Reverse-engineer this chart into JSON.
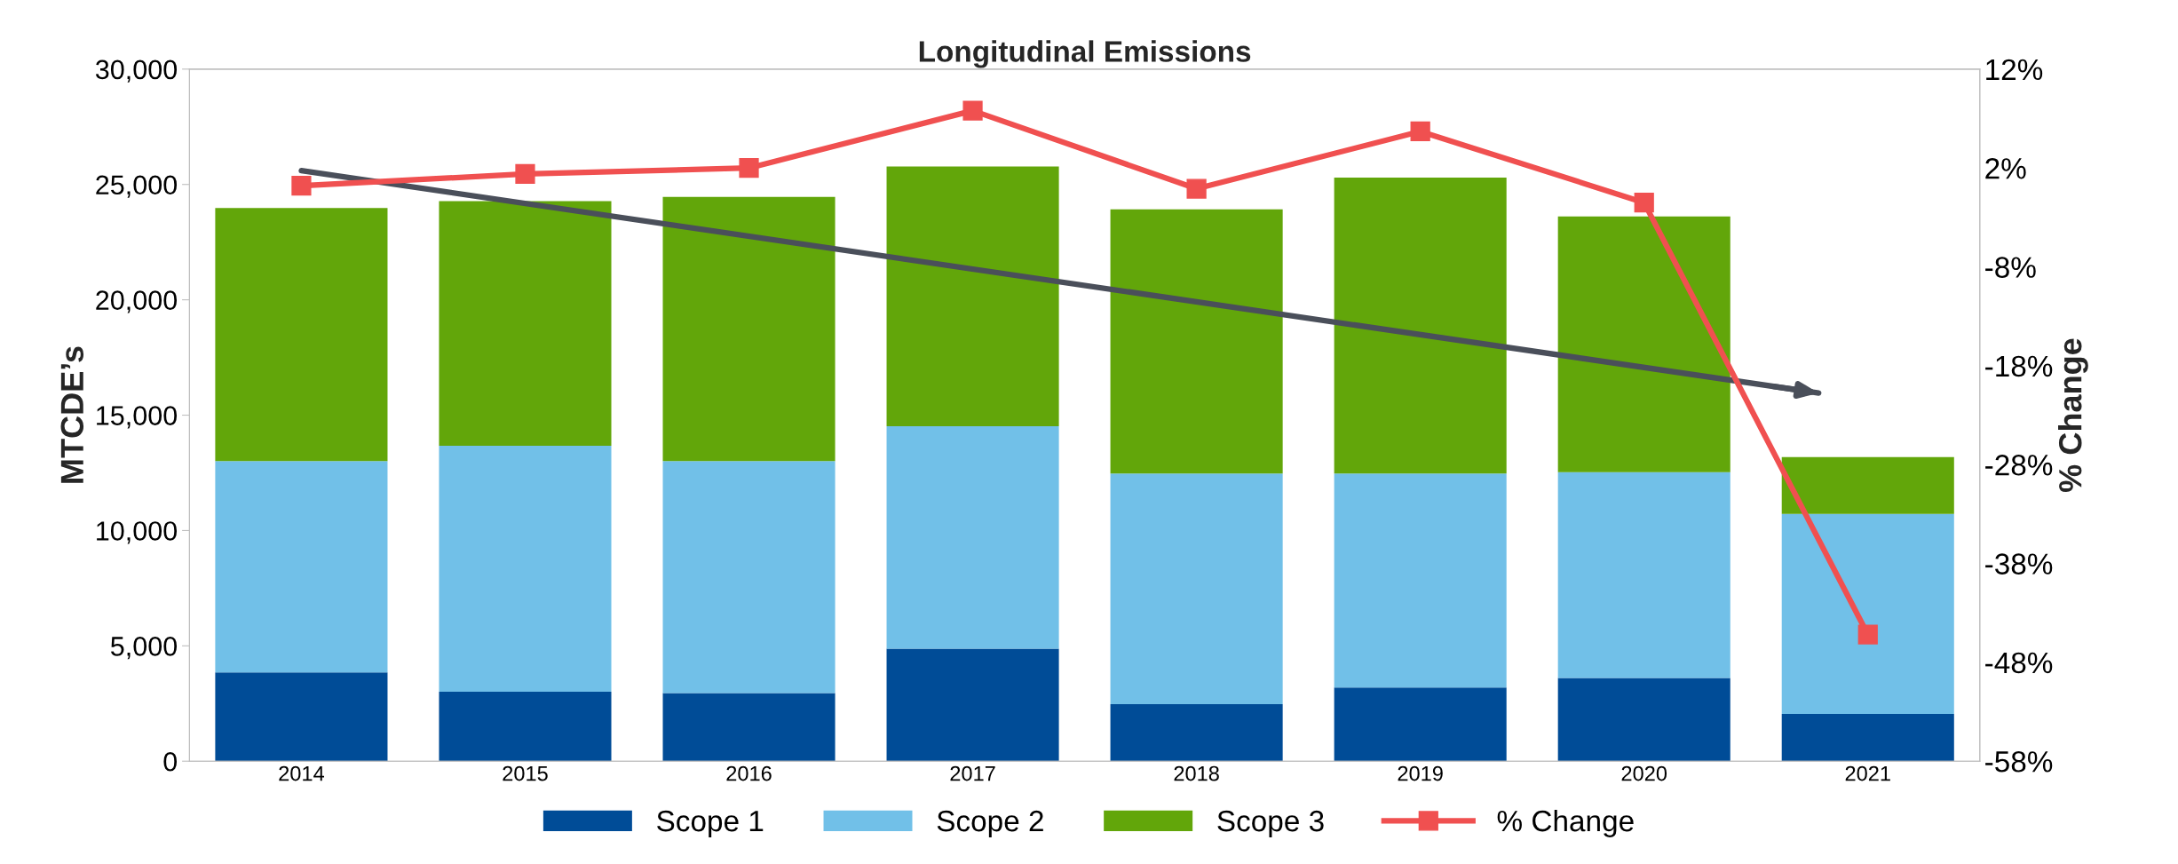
{
  "chart_data": {
    "type": "bar",
    "title": "Longitudinal Emissions",
    "ylabel": "MTCDE’s",
    "y2label": "% Change",
    "stacked": true,
    "x": [
      2014,
      2015,
      2016,
      2017,
      2018,
      2019,
      2020,
      2021
    ],
    "xlim": [
      2013.5,
      2021.5
    ],
    "xticks": [
      2014,
      2015,
      2016,
      2017,
      2018,
      2019,
      2020,
      2021
    ],
    "ylim": [
      0,
      30000
    ],
    "yticks": [
      {
        "value": 0,
        "label": "0"
      },
      {
        "value": 5000,
        "label": "5,000"
      },
      {
        "value": 10000,
        "label": "10,000"
      },
      {
        "value": 15000,
        "label": "15,000"
      },
      {
        "value": 20000,
        "label": "20,000"
      },
      {
        "value": 25000,
        "label": "25,000"
      },
      {
        "value": 30000,
        "label": "30,000"
      }
    ],
    "y2lim": [
      -58,
      12
    ],
    "y2ticks": [
      {
        "value": 12,
        "label": "12%"
      },
      {
        "value": 2,
        "label": "2%"
      },
      {
        "value": -8,
        "label": "-8%"
      },
      {
        "value": -18,
        "label": "-18%"
      },
      {
        "value": -28,
        "label": "-28%"
      },
      {
        "value": -38,
        "label": "-38%"
      },
      {
        "value": -48,
        "label": "-48%"
      },
      {
        "value": -58,
        "label": "-58%"
      }
    ],
    "series": [
      {
        "name": "Scope 1",
        "color": "#004c97",
        "values": [
          3850,
          3010,
          2950,
          4880,
          2470,
          3190,
          3610,
          2050
        ]
      },
      {
        "name": "Scope 2",
        "color": "#71c0e8",
        "values": [
          9160,
          10660,
          10060,
          9640,
          10000,
          9280,
          8920,
          8670
        ]
      },
      {
        "name": "Scope 3",
        "color": "#62a60a",
        "values": [
          10970,
          10610,
          11450,
          11260,
          11450,
          12830,
          11080,
          2460
        ]
      },
      {
        "name": "% Change",
        "type": "line",
        "axis": "y2",
        "color": "#f05050",
        "marker": "square",
        "values": [
          0.2,
          1.4,
          2.0,
          7.8,
          -0.1,
          5.7,
          -1.5,
          -45.2
        ]
      },
      {
        "type": "line",
        "color": "#4a4f5a",
        "x": [
          2014,
          2020.78
        ],
        "values": [
          25600,
          15960
        ]
      }
    ],
    "legend": "bottom",
    "grid": false
  }
}
